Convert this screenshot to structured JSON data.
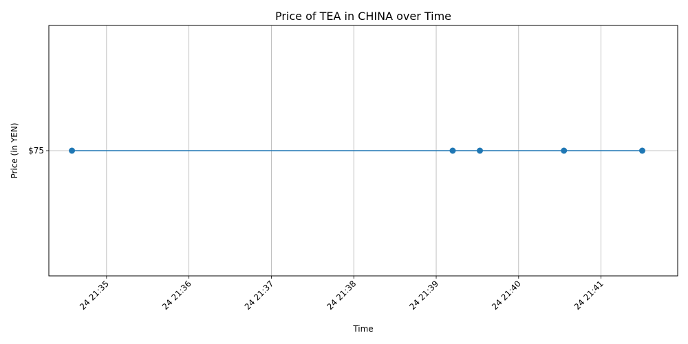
{
  "chart_data": {
    "type": "line",
    "title": "Price of TEA in CHINA over Time",
    "xlabel": "Time",
    "ylabel": "Price (in YEN)",
    "x_tick_labels": [
      "24 21:35",
      "24 21:36",
      "24 21:37",
      "24 21:38",
      "24 21:39",
      "24 21:40",
      "24 21:41"
    ],
    "x_tick_minutes": [
      35,
      36,
      37,
      38,
      39,
      40,
      41
    ],
    "x_range_minutes": [
      34.3,
      41.93
    ],
    "y_tick_labels": [
      "$75"
    ],
    "y_tick_values": [
      75
    ],
    "ylim": [
      74.95,
      75.05
    ],
    "series": [
      {
        "x_minutes": [
          34.58,
          39.2,
          39.53,
          40.55,
          41.5
        ],
        "values": [
          75,
          75,
          75,
          75,
          75
        ],
        "color": "#1f77b4",
        "marker": "circle"
      }
    ],
    "grid": true
  }
}
